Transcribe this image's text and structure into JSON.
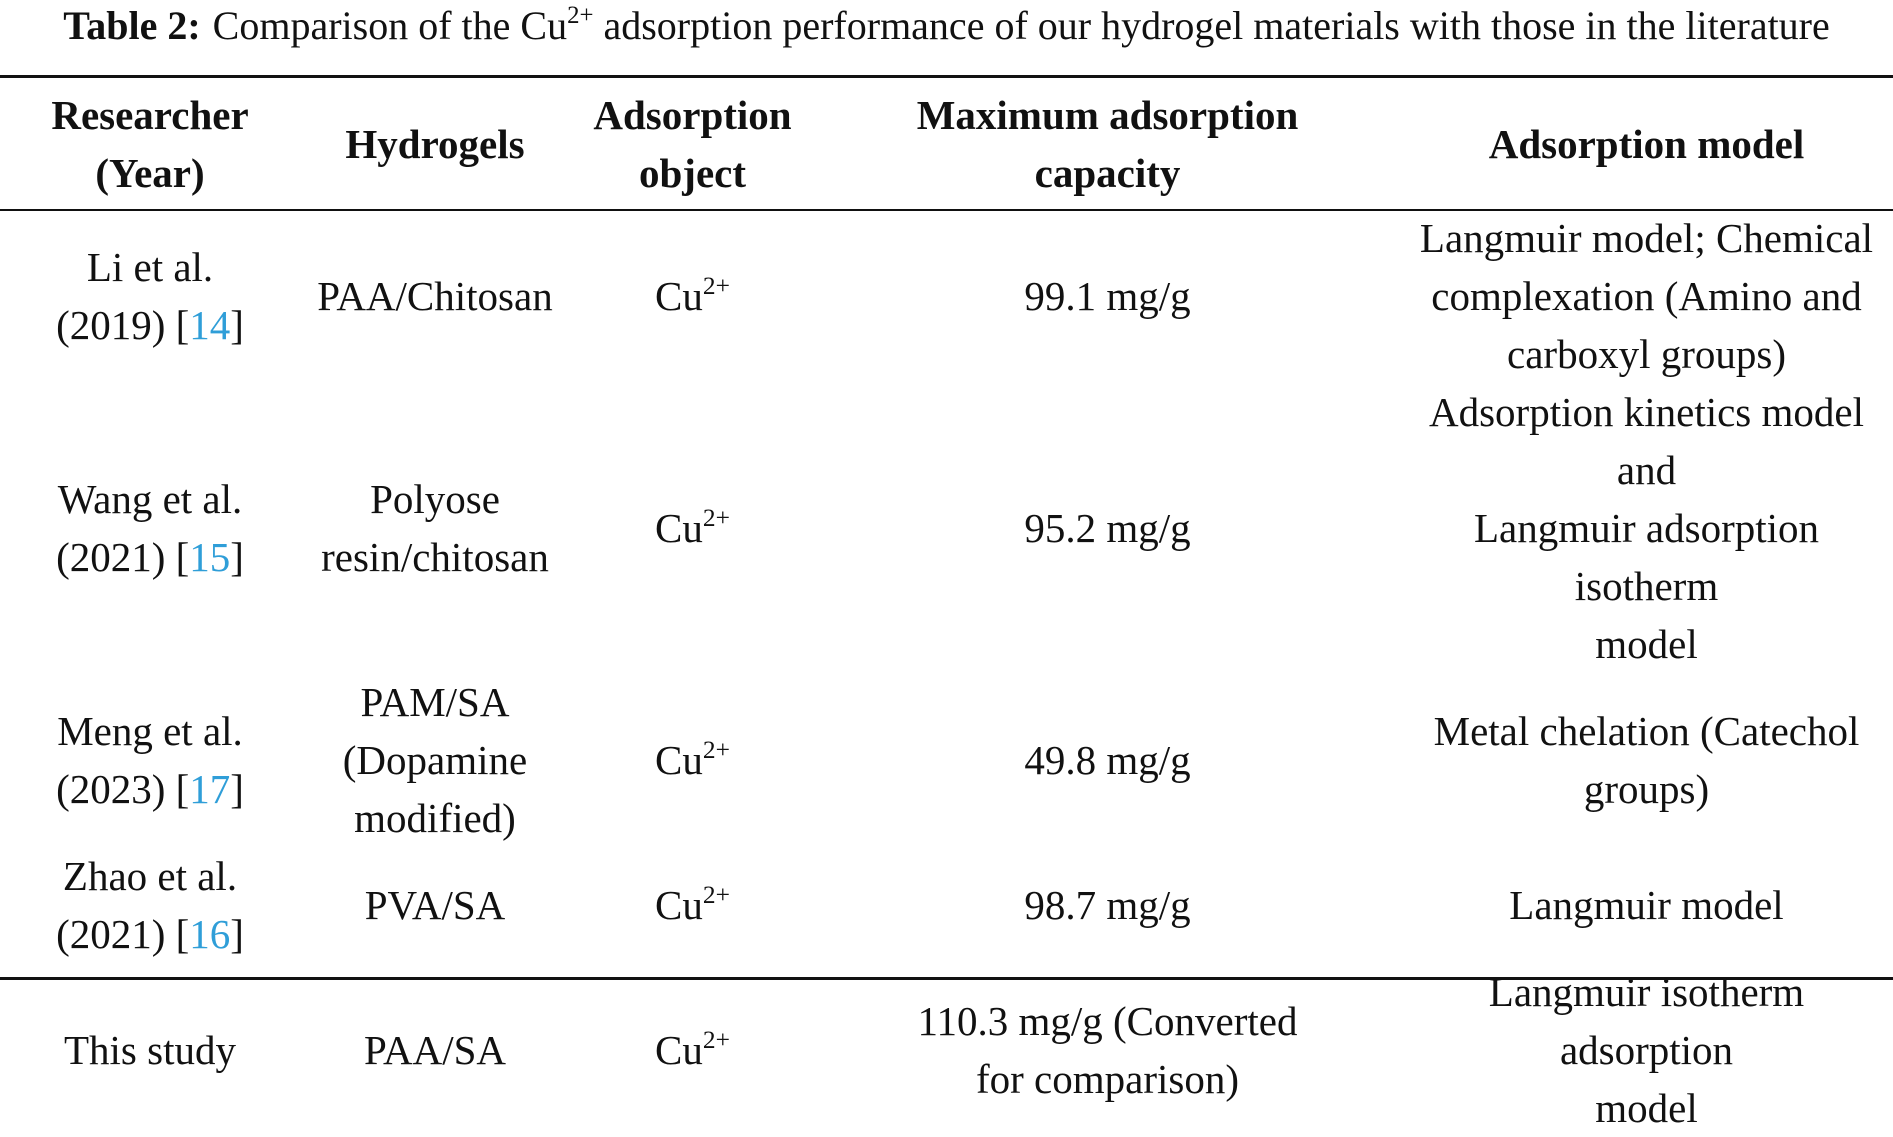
{
  "caption": {
    "label": "Table 2:",
    "text_before": "Comparison of the Cu",
    "text_sup": "2+",
    "text_after": " adsorption performance of our hydrogel materials with those in the literature"
  },
  "headers": {
    "researcher_line1": "Researcher",
    "researcher_line2": "(Year)",
    "hydrogels": "Hydrogels",
    "object_line1": "Adsorption",
    "object_line2": "object",
    "capacity_line1": "Maximum adsorption",
    "capacity_line2": "capacity",
    "model": "Adsorption model"
  },
  "ion": {
    "base": "Cu",
    "charge": "2+"
  },
  "rows": [
    {
      "researcher": "Li et al.",
      "year": "(2019)",
      "ref": "14",
      "hydrogel_lines": [
        "PAA/Chitosan"
      ],
      "capacity_lines": [
        "99.1 mg/g"
      ],
      "model_lines": [
        "Langmuir model; Chemical",
        "complexation (Amino and",
        "carboxyl groups)"
      ]
    },
    {
      "researcher": "Wang et al.",
      "year": "(2021)",
      "ref": "15",
      "hydrogel_lines": [
        "Polyose",
        "resin/chitosan"
      ],
      "capacity_lines": [
        "95.2 mg/g"
      ],
      "model_lines": [
        "Adsorption kinetics model and",
        "Langmuir adsorption isotherm",
        "model"
      ]
    },
    {
      "researcher": "Meng et al.",
      "year": "(2023)",
      "ref": "17",
      "hydrogel_lines": [
        "PAM/SA",
        "(Dopamine",
        "modified)"
      ],
      "capacity_lines": [
        "49.8 mg/g"
      ],
      "model_lines": [
        "Metal chelation (Catechol",
        "groups)"
      ]
    },
    {
      "researcher": "Zhao et al.",
      "year": "(2021)",
      "ref": "16",
      "hydrogel_lines": [
        "PVA/SA"
      ],
      "capacity_lines": [
        "98.7 mg/g"
      ],
      "model_lines": [
        "Langmuir model"
      ]
    },
    {
      "researcher": "This study",
      "year": "",
      "ref": "",
      "hydrogel_lines": [
        "PAA/SA"
      ],
      "capacity_lines": [
        "110.3 mg/g (Converted",
        "for comparison)"
      ],
      "model_lines": [
        "Langmuir isotherm adsorption",
        "model"
      ]
    }
  ],
  "colors": {
    "text": "#111111",
    "reference_link": "#2f9ed8",
    "rules": "#111111"
  }
}
